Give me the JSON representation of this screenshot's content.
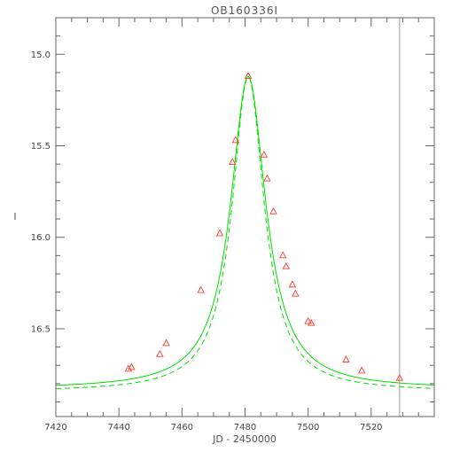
{
  "chart_data": {
    "type": "scatter",
    "title": "OB160336I",
    "xlabel": "JD - 2450000",
    "ylabel": "I",
    "xlim": [
      7420,
      7540
    ],
    "ylim": [
      14.8,
      16.98
    ],
    "y_inverted": true,
    "grid": false,
    "x_ticks": [
      "7420",
      "7440",
      "7460",
      "7480",
      "7500",
      "7520"
    ],
    "y_ticks": [
      "15.0",
      "15.5",
      "16.0",
      "16.5"
    ],
    "vertical_line_x": 7529,
    "colors": {
      "model": "#00dd00",
      "points": "#ff3b2f",
      "axes": "#666666",
      "vline": "#999999"
    },
    "series": [
      {
        "style": "points",
        "marker": "triangle",
        "x": [
          7443,
          7444,
          7453,
          7455,
          7466,
          7472,
          7476,
          7477,
          7481,
          7486,
          7487,
          7489,
          7492,
          7493,
          7495,
          7496,
          7500,
          7501,
          7512,
          7517,
          7529
        ],
        "y": [
          16.72,
          16.71,
          16.64,
          16.58,
          16.29,
          15.98,
          15.59,
          15.47,
          15.12,
          15.55,
          15.68,
          15.86,
          16.1,
          16.16,
          16.26,
          16.31,
          16.46,
          16.47,
          16.67,
          16.73,
          16.77
        ]
      },
      {
        "style": "solid",
        "model": {
          "t0": 7481,
          "gamma": 6.8,
          "base": 16.83,
          "amp": 1.71
        }
      },
      {
        "style": "dashed",
        "model": {
          "t0": 7481,
          "gamma": 6.2,
          "base": 16.845,
          "amp": 1.725
        }
      }
    ]
  }
}
